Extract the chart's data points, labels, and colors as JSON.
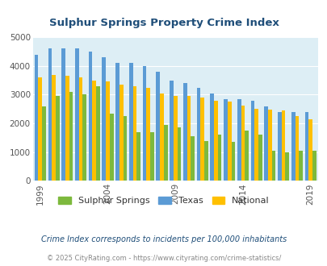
{
  "title": "Sulphur Springs Property Crime Index",
  "years": [
    1999,
    2000,
    2001,
    2002,
    2003,
    2004,
    2005,
    2006,
    2007,
    2008,
    2009,
    2010,
    2011,
    2012,
    2013,
    2014,
    2015,
    2016,
    2017,
    2018,
    2019,
    2020
  ],
  "sulphur_springs": [
    2600,
    2950,
    3100,
    3000,
    3300,
    2350,
    2250,
    1700,
    1700,
    1950,
    1850,
    1550,
    1400,
    1600,
    1350,
    1750,
    1600,
    1050,
    1000,
    1050,
    1050,
    null
  ],
  "texas": [
    4400,
    4600,
    4620,
    4620,
    4500,
    4300,
    4100,
    4100,
    4000,
    3800,
    3500,
    3400,
    3250,
    3050,
    2850,
    2850,
    2800,
    2600,
    2400,
    2400,
    2400,
    null
  ],
  "national": [
    3600,
    3680,
    3660,
    3600,
    3500,
    3450,
    3350,
    3300,
    3250,
    3050,
    2970,
    2950,
    2890,
    2800,
    2750,
    2620,
    2500,
    2470,
    2450,
    2250,
    2150,
    null
  ],
  "color_ss": "#7db93d",
  "color_tx": "#5b9bd5",
  "color_nat": "#ffc000",
  "bg_color": "#ddeef5",
  "ylim": [
    0,
    5000
  ],
  "yticks": [
    0,
    1000,
    2000,
    3000,
    4000,
    5000
  ],
  "xtick_years": [
    1999,
    2004,
    2009,
    2014,
    2019
  ],
  "legend_labels": [
    "Sulphur Springs",
    "Texas",
    "National"
  ],
  "footnote1": "Crime Index corresponds to incidents per 100,000 inhabitants",
  "footnote2": "© 2025 CityRating.com - https://www.cityrating.com/crime-statistics/",
  "title_color": "#1f4e79",
  "footnote1_color": "#1f4e79",
  "footnote2_color": "#888888"
}
